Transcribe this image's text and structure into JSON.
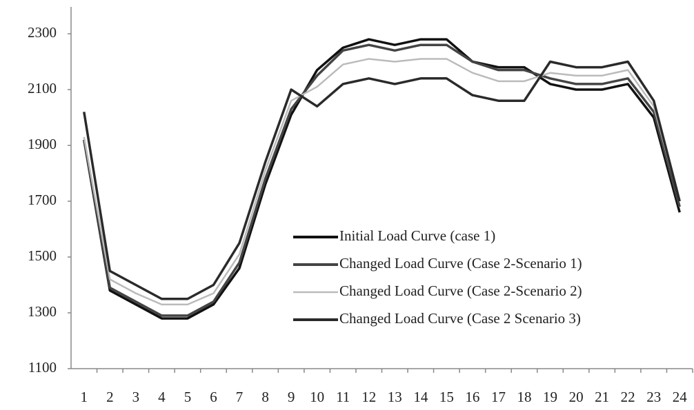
{
  "chart_data": {
    "type": "line",
    "categories": [
      "1",
      "2",
      "3",
      "4",
      "5",
      "6",
      "7",
      "8",
      "9",
      "10",
      "11",
      "12",
      "13",
      "14",
      "15",
      "16",
      "17",
      "18",
      "19",
      "20",
      "21",
      "22",
      "23",
      "24"
    ],
    "ylim": [
      1100,
      2300
    ],
    "yticks": [
      1100,
      1300,
      1500,
      1700,
      1900,
      2100,
      2300
    ],
    "grid": false,
    "series": [
      {
        "name": "Initial Load Curve (case 1)",
        "color": "#111111",
        "values": [
          1920,
          1380,
          1330,
          1280,
          1280,
          1330,
          1460,
          1760,
          2010,
          2170,
          2250,
          2280,
          2260,
          2280,
          2280,
          2200,
          2180,
          2180,
          2120,
          2100,
          2100,
          2120,
          2000,
          1660
        ]
      },
      {
        "name": "Changed Load Curve (Case 2-Scenario 1)",
        "color": "#444444",
        "values": [
          1920,
          1390,
          1340,
          1290,
          1290,
          1340,
          1480,
          1780,
          2030,
          2150,
          2240,
          2260,
          2240,
          2260,
          2260,
          2200,
          2170,
          2170,
          2140,
          2120,
          2120,
          2140,
          2020,
          1680
        ]
      },
      {
        "name": "Changed Load Curve (Case 2-Scenario 2)",
        "color": "#bbbbbb",
        "values": [
          1930,
          1420,
          1370,
          1330,
          1330,
          1370,
          1510,
          1810,
          2060,
          2110,
          2190,
          2210,
          2200,
          2210,
          2210,
          2160,
          2130,
          2130,
          2160,
          2150,
          2150,
          2170,
          2040,
          1700
        ]
      },
      {
        "name": "Changed Load Curve (Case 2 Scenario 3)",
        "color": "#2a2a2a",
        "values": [
          2020,
          1450,
          1400,
          1350,
          1350,
          1400,
          1550,
          1840,
          2100,
          2040,
          2120,
          2140,
          2120,
          2140,
          2140,
          2080,
          2060,
          2060,
          2200,
          2180,
          2180,
          2200,
          2060,
          1700
        ]
      }
    ]
  }
}
